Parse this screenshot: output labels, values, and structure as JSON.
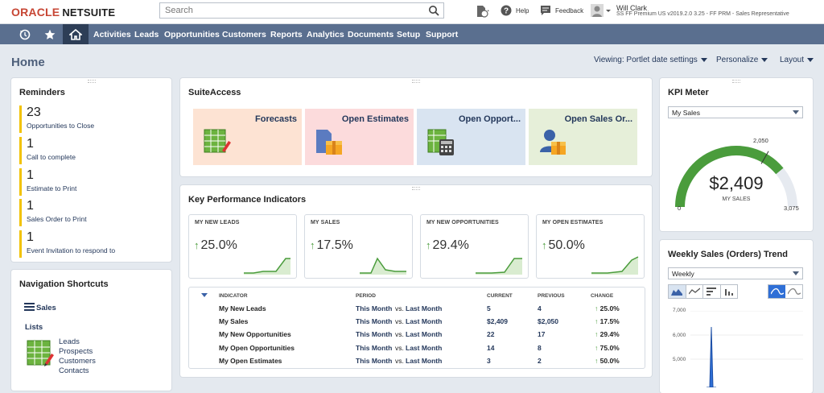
{
  "brand": {
    "oracle": "ORACLE",
    "netsuite": "NETSUITE"
  },
  "search": {
    "placeholder": "Search"
  },
  "toolbar": {
    "help": "Help",
    "feedback": "Feedback"
  },
  "user": {
    "name": "Will Clark",
    "role": "SS FF Premium US v2019.2.0 3.25 - FF PRM - Sales Representative"
  },
  "nav": {
    "items": [
      "Activities",
      "Leads",
      "Opportunities",
      "Customers",
      "Reports",
      "Analytics",
      "Documents",
      "Setup",
      "Support"
    ]
  },
  "page": {
    "title": "Home",
    "viewing": "Viewing: Portlet date settings",
    "personalize": "Personalize",
    "layout": "Layout"
  },
  "reminders": {
    "title": "Reminders",
    "items": [
      {
        "count": "23",
        "label": "Opportunities to Close"
      },
      {
        "count": "1",
        "label": "Call to complete"
      },
      {
        "count": "1",
        "label": "Estimate to Print"
      },
      {
        "count": "1",
        "label": "Sales Order to Print"
      },
      {
        "count": "1",
        "label": "Event Invitation to respond to"
      }
    ]
  },
  "shortcuts": {
    "title": "Navigation Shortcuts",
    "sales": "Sales",
    "lists": "Lists",
    "links": [
      "Leads",
      "Prospects",
      "Customers",
      "Contacts"
    ]
  },
  "suiteaccess": {
    "title": "SuiteAccess",
    "tiles": [
      {
        "label": "Forecasts",
        "color": "#fde3d3"
      },
      {
        "label": "Open Estimates",
        "color": "#fcdbdc"
      },
      {
        "label": "Open Opport...",
        "color": "#d9e4f1"
      },
      {
        "label": "Open Sales Or...",
        "color": "#e6efd9"
      }
    ]
  },
  "kpi": {
    "title": "Key Performance Indicators",
    "cards": [
      {
        "label": "MY NEW LEADS",
        "value": "25.0%"
      },
      {
        "label": "MY SALES",
        "value": "17.5%"
      },
      {
        "label": "MY NEW OPPORTUNITIES",
        "value": "29.4%"
      },
      {
        "label": "MY OPEN ESTIMATES",
        "value": "50.0%"
      }
    ],
    "headers": {
      "indicator": "INDICATOR",
      "period": "PERIOD",
      "current": "CURRENT",
      "previous": "PREVIOUS",
      "change": "CHANGE"
    },
    "period": {
      "a": "This Month",
      "vs": "vs.",
      "b": "Last Month"
    },
    "rows": [
      {
        "name": "My New Leads",
        "current": "5",
        "previous": "4",
        "change": "25.0%"
      },
      {
        "name": "My Sales",
        "current": "$2,409",
        "previous": "$2,050",
        "change": "17.5%"
      },
      {
        "name": "My New Opportunities",
        "current": "22",
        "previous": "17",
        "change": "29.4%"
      },
      {
        "name": "My Open Opportunities",
        "current": "14",
        "previous": "8",
        "change": "75.0%"
      },
      {
        "name": "My Open Estimates",
        "current": "3",
        "previous": "2",
        "change": "50.0%"
      }
    ]
  },
  "kpimeter": {
    "title": "KPI Meter",
    "select": "My Sales",
    "value": "$2,409",
    "caption": "MY SALES",
    "min": "0",
    "target": "2,050",
    "max": "3,075",
    "fraction": 0.78
  },
  "trend": {
    "title": "Weekly Sales (Orders) Trend",
    "select": "Weekly",
    "yticks": [
      "7,000",
      "6,000",
      "5,000"
    ]
  },
  "colors": {
    "accent": "#5a6f8f",
    "navdark": "#2d3e57",
    "reminder": "#f2c200",
    "up": "#4a9c3c",
    "gauge": "#4a9c3c"
  }
}
